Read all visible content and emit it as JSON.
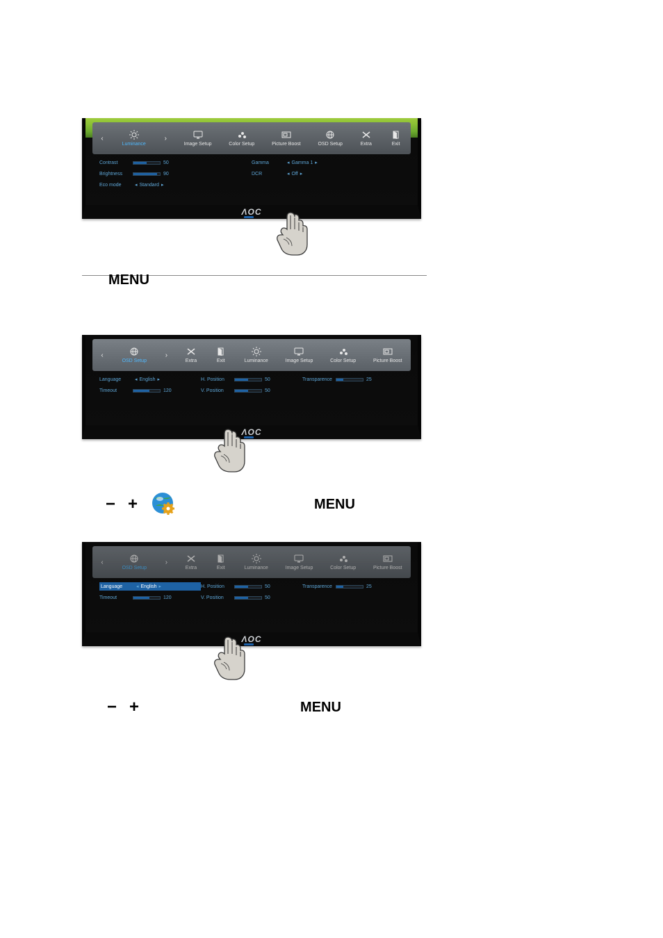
{
  "colors": {
    "page_bg": "#ffffff",
    "bezel": "#0a0a0a",
    "osd_row_grad_top_a": "#6d7277",
    "osd_row_grad_bot_a": "#4c5156",
    "osd_row_grad_top_b": "#7a8086",
    "osd_row_grad_bot_b": "#5a6066",
    "osd_text": "#e8e8e8",
    "setting_text": "#5fa7d8",
    "slider_fill": "#1e62a4",
    "slider_track": "#1a1f24",
    "slider_border": "#2e465a",
    "selected_row_bg": "#1e62a4",
    "hr": "#888888",
    "logo_text": "#cfd2d6",
    "led": "#1a5fa8",
    "caption_text": "#000000",
    "grass_top": "#9ecb3c",
    "grass_bot": "#4b7f21",
    "globe_blue": "#2c8fd6",
    "globe_gear": "#e6a21a",
    "hand_fill": "#d6d3cc",
    "hand_stroke": "#3a3a3a"
  },
  "brand": {
    "logo_text": "ΛOC"
  },
  "captions": {
    "step1_menu": "MENU",
    "step2_menu": "MENU",
    "step3_menu": "MENU",
    "minus": "−",
    "plus": "+"
  },
  "step1": {
    "tabs": [
      {
        "id": "luminance",
        "label": "Luminance",
        "icon": "sun",
        "active": true
      },
      {
        "id": "image-setup",
        "label": "Image Setup",
        "icon": "monitor",
        "active": false
      },
      {
        "id": "color-setup",
        "label": "Color Setup",
        "icon": "palette",
        "active": false
      },
      {
        "id": "picture-boost",
        "label": "Picture Boost",
        "icon": "frame",
        "active": false
      },
      {
        "id": "osd-setup",
        "label": "OSD Setup",
        "icon": "globe",
        "active": false
      },
      {
        "id": "extra",
        "label": "Extra",
        "icon": "x",
        "active": false
      },
      {
        "id": "exit",
        "label": "Exit",
        "icon": "door",
        "active": false
      }
    ],
    "settings_left": [
      {
        "name": "Contrast",
        "type": "slider",
        "value": 50,
        "min": 0,
        "max": 100
      },
      {
        "name": "Brightness",
        "type": "slider",
        "value": 90,
        "min": 0,
        "max": 100
      },
      {
        "name": "Eco mode",
        "type": "choice",
        "value": "Standard"
      }
    ],
    "settings_right": [
      {
        "name": "Gamma",
        "type": "choice",
        "value": "Gamma 1"
      },
      {
        "name": "DCR",
        "type": "choice",
        "value": "Off"
      }
    ]
  },
  "step2": {
    "tabs": [
      {
        "id": "osd-setup",
        "label": "OSD Setup",
        "icon": "globe",
        "active": true
      },
      {
        "id": "extra",
        "label": "Extra",
        "icon": "x",
        "active": false
      },
      {
        "id": "exit",
        "label": "Exit",
        "icon": "door",
        "active": false
      },
      {
        "id": "luminance",
        "label": "Luminance",
        "icon": "sun",
        "active": false
      },
      {
        "id": "image-setup",
        "label": "Image Setup",
        "icon": "monitor",
        "active": false
      },
      {
        "id": "color-setup",
        "label": "Color Setup",
        "icon": "palette",
        "active": false
      },
      {
        "id": "picture-boost",
        "label": "Picture Boost",
        "icon": "frame",
        "active": false
      }
    ],
    "settings_left": [
      {
        "name": "Language",
        "type": "choice",
        "value": "English"
      },
      {
        "name": "Timeout",
        "type": "slider",
        "value": 120,
        "min": 0,
        "max": 200,
        "fill_pct": 60
      }
    ],
    "settings_mid": [
      {
        "name": "H. Position",
        "type": "slider",
        "value": 50,
        "min": 0,
        "max": 100
      },
      {
        "name": "V. Position",
        "type": "slider",
        "value": 50,
        "min": 0,
        "max": 100
      }
    ],
    "settings_right": [
      {
        "name": "Transparence",
        "type": "slider",
        "value": 25,
        "min": 0,
        "max": 100
      }
    ]
  },
  "step3": {
    "tabs": [
      {
        "id": "osd-setup",
        "label": "OSD Setup",
        "icon": "globe",
        "active": true
      },
      {
        "id": "extra",
        "label": "Extra",
        "icon": "x",
        "active": false
      },
      {
        "id": "exit",
        "label": "Exit",
        "icon": "door",
        "active": false
      },
      {
        "id": "luminance",
        "label": "Luminance",
        "icon": "sun",
        "active": false
      },
      {
        "id": "image-setup",
        "label": "Image Setup",
        "icon": "monitor",
        "active": false
      },
      {
        "id": "color-setup",
        "label": "Color Setup",
        "icon": "palette",
        "active": false
      },
      {
        "id": "picture-boost",
        "label": "Picture Boost",
        "icon": "frame",
        "active": false
      }
    ],
    "dimmed": true,
    "settings_left": [
      {
        "name": "Language",
        "type": "choice",
        "value": "English",
        "selected": true
      },
      {
        "name": "Timeout",
        "type": "slider",
        "value": 120,
        "min": 0,
        "max": 200,
        "fill_pct": 60
      }
    ],
    "settings_mid": [
      {
        "name": "H. Position",
        "type": "slider",
        "value": 50,
        "min": 0,
        "max": 100
      },
      {
        "name": "V. Position",
        "type": "slider",
        "value": 50,
        "min": 0,
        "max": 100
      }
    ],
    "settings_right": [
      {
        "name": "Transparence",
        "type": "slider",
        "value": 25,
        "min": 0,
        "max": 100
      }
    ]
  }
}
